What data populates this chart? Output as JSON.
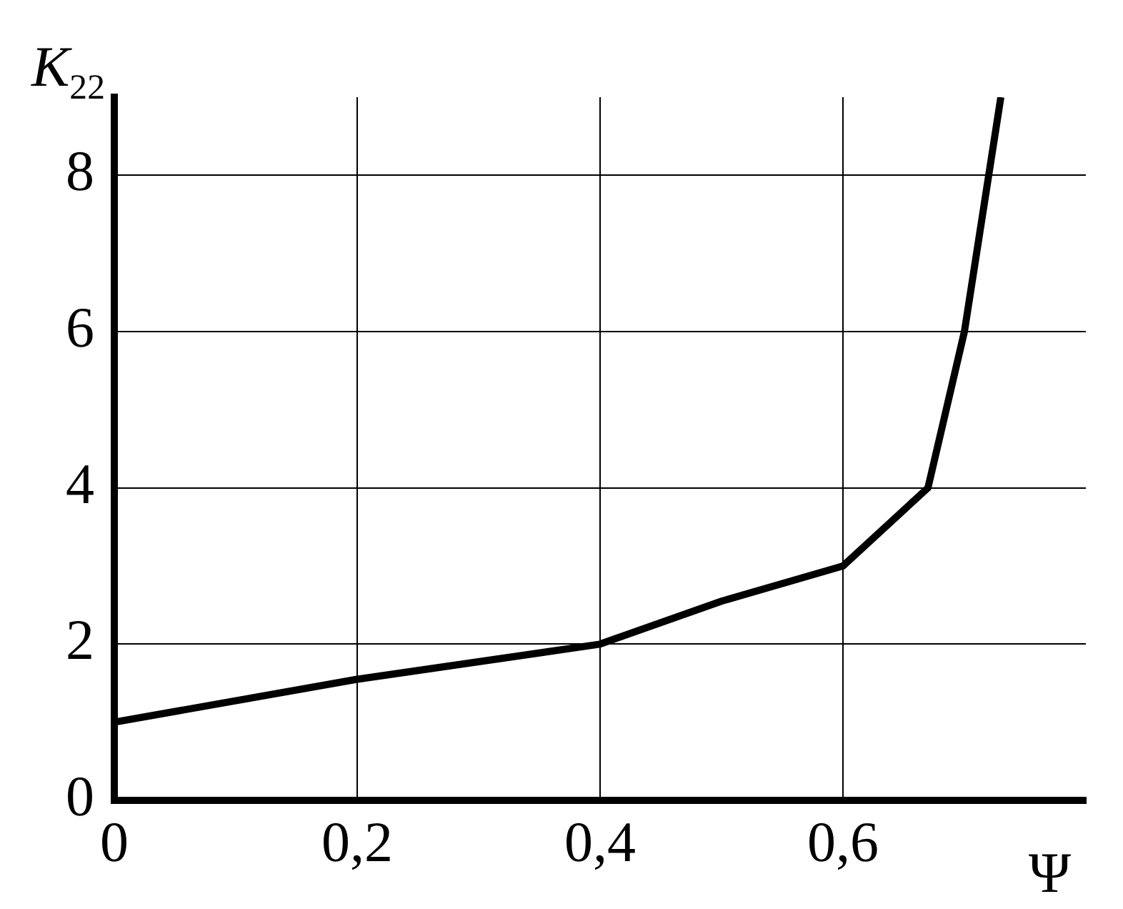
{
  "chart_data": {
    "type": "line",
    "xlabel": "Ψ",
    "ylabel": "K$_{22}$",
    "x": [
      0,
      0.2,
      0.4,
      0.5,
      0.6,
      0.67,
      0.7,
      0.73
    ],
    "series": [
      {
        "color": "#000000",
        "values": [
          1,
          1.55,
          2,
          2.55,
          3,
          4,
          6,
          9
        ]
      }
    ],
    "xlim": [
      0,
      0.8
    ],
    "xticks": [
      0,
      {
        "value": 0.2,
        "label": "0,2"
      },
      {
        "value": 0.4,
        "label": "0,4"
      },
      {
        "value": 0.6,
        "label": "0,6"
      }
    ],
    "ylim": [
      0,
      9
    ],
    "yticks": [
      0,
      2,
      4,
      6,
      8
    ],
    "grid": true,
    "legend": false,
    "marker": "none",
    "line_style": "solid"
  }
}
